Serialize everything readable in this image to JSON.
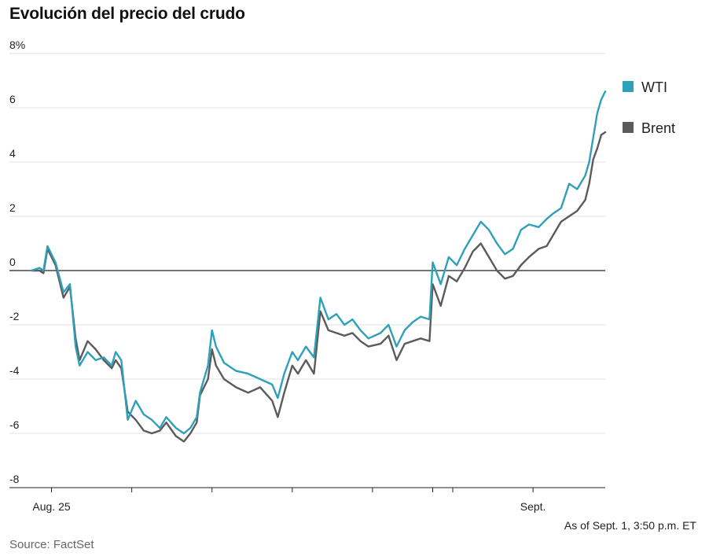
{
  "chart_data": {
    "type": "line",
    "title": "Evolución del precio del crudo",
    "ylabel": "",
    "xlabel": "",
    "ylim": [
      -8,
      8
    ],
    "y_ticks": [
      8,
      6,
      4,
      2,
      0,
      -2,
      -4,
      -6,
      -8
    ],
    "y_tick_labels": [
      "8%",
      "6",
      "4",
      "2",
      "0",
      "-2",
      "-4",
      "-6",
      "-8"
    ],
    "x_range": [
      0,
      7.15
    ],
    "x_ticks": [
      0.25,
      1.25,
      2.25,
      3.25,
      4.25,
      5.0,
      5.25,
      6.25
    ],
    "x_tick_labels": [
      {
        "x": 0.25,
        "label": "Aug. 25"
      },
      {
        "x": 6.25,
        "label": "Sept."
      }
    ],
    "legend_position": "right",
    "grid": true,
    "series": [
      {
        "name": "WTI",
        "color": "#2ea1b8",
        "points": [
          [
            0,
            0
          ],
          [
            0.1,
            0.1
          ],
          [
            0.15,
            0.0
          ],
          [
            0.2,
            0.9
          ],
          [
            0.3,
            0.3
          ],
          [
            0.4,
            -0.8
          ],
          [
            0.48,
            -0.5
          ],
          [
            0.55,
            -2.8
          ],
          [
            0.6,
            -3.5
          ],
          [
            0.7,
            -3.0
          ],
          [
            0.8,
            -3.3
          ],
          [
            0.9,
            -3.2
          ],
          [
            1.0,
            -3.5
          ],
          [
            1.05,
            -3.0
          ],
          [
            1.12,
            -3.3
          ],
          [
            1.2,
            -5.5
          ],
          [
            1.3,
            -4.8
          ],
          [
            1.4,
            -5.3
          ],
          [
            1.5,
            -5.5
          ],
          [
            1.6,
            -5.8
          ],
          [
            1.68,
            -5.4
          ],
          [
            1.8,
            -5.8
          ],
          [
            1.9,
            -6.0
          ],
          [
            1.98,
            -5.8
          ],
          [
            2.06,
            -5.4
          ],
          [
            2.1,
            -4.5
          ],
          [
            2.2,
            -3.5
          ],
          [
            2.25,
            -2.2
          ],
          [
            2.3,
            -2.8
          ],
          [
            2.4,
            -3.4
          ],
          [
            2.55,
            -3.7
          ],
          [
            2.7,
            -3.8
          ],
          [
            2.85,
            -4.0
          ],
          [
            3.0,
            -4.2
          ],
          [
            3.07,
            -4.7
          ],
          [
            3.15,
            -3.8
          ],
          [
            3.25,
            -3.0
          ],
          [
            3.32,
            -3.3
          ],
          [
            3.42,
            -2.8
          ],
          [
            3.52,
            -3.2
          ],
          [
            3.6,
            -1.0
          ],
          [
            3.7,
            -1.8
          ],
          [
            3.8,
            -1.6
          ],
          [
            3.9,
            -2.0
          ],
          [
            4.0,
            -1.8
          ],
          [
            4.1,
            -2.2
          ],
          [
            4.2,
            -2.5
          ],
          [
            4.35,
            -2.3
          ],
          [
            4.45,
            -2.0
          ],
          [
            4.55,
            -2.8
          ],
          [
            4.65,
            -2.2
          ],
          [
            4.75,
            -1.9
          ],
          [
            4.85,
            -1.7
          ],
          [
            4.96,
            -1.8
          ],
          [
            5.0,
            0.3
          ],
          [
            5.1,
            -0.5
          ],
          [
            5.2,
            0.5
          ],
          [
            5.3,
            0.2
          ],
          [
            5.4,
            0.8
          ],
          [
            5.5,
            1.3
          ],
          [
            5.6,
            1.8
          ],
          [
            5.7,
            1.5
          ],
          [
            5.8,
            1.0
          ],
          [
            5.9,
            0.6
          ],
          [
            6.0,
            0.8
          ],
          [
            6.1,
            1.5
          ],
          [
            6.2,
            1.7
          ],
          [
            6.32,
            1.6
          ],
          [
            6.42,
            1.9
          ],
          [
            6.5,
            2.1
          ],
          [
            6.6,
            2.3
          ],
          [
            6.7,
            3.2
          ],
          [
            6.8,
            3.0
          ],
          [
            6.9,
            3.5
          ],
          [
            6.95,
            4.0
          ],
          [
            7.0,
            4.9
          ],
          [
            7.05,
            5.8
          ],
          [
            7.1,
            6.3
          ],
          [
            7.15,
            6.6
          ]
        ]
      },
      {
        "name": "Brent",
        "color": "#5b5b5b",
        "points": [
          [
            0,
            0
          ],
          [
            0.1,
            0.0
          ],
          [
            0.15,
            -0.1
          ],
          [
            0.2,
            0.8
          ],
          [
            0.3,
            0.2
          ],
          [
            0.4,
            -1.0
          ],
          [
            0.48,
            -0.6
          ],
          [
            0.55,
            -2.5
          ],
          [
            0.6,
            -3.3
          ],
          [
            0.7,
            -2.6
          ],
          [
            0.8,
            -2.9
          ],
          [
            0.9,
            -3.3
          ],
          [
            1.0,
            -3.6
          ],
          [
            1.05,
            -3.3
          ],
          [
            1.12,
            -3.6
          ],
          [
            1.2,
            -5.2
          ],
          [
            1.3,
            -5.5
          ],
          [
            1.4,
            -5.9
          ],
          [
            1.5,
            -6.0
          ],
          [
            1.6,
            -5.9
          ],
          [
            1.68,
            -5.6
          ],
          [
            1.8,
            -6.1
          ],
          [
            1.9,
            -6.3
          ],
          [
            1.98,
            -6.0
          ],
          [
            2.06,
            -5.6
          ],
          [
            2.1,
            -4.6
          ],
          [
            2.2,
            -4.0
          ],
          [
            2.25,
            -2.9
          ],
          [
            2.3,
            -3.5
          ],
          [
            2.4,
            -4.0
          ],
          [
            2.55,
            -4.3
          ],
          [
            2.7,
            -4.5
          ],
          [
            2.85,
            -4.3
          ],
          [
            3.0,
            -4.8
          ],
          [
            3.07,
            -5.4
          ],
          [
            3.15,
            -4.5
          ],
          [
            3.25,
            -3.5
          ],
          [
            3.32,
            -3.8
          ],
          [
            3.42,
            -3.3
          ],
          [
            3.52,
            -3.8
          ],
          [
            3.6,
            -1.5
          ],
          [
            3.7,
            -2.2
          ],
          [
            3.8,
            -2.3
          ],
          [
            3.9,
            -2.4
          ],
          [
            4.0,
            -2.3
          ],
          [
            4.1,
            -2.6
          ],
          [
            4.2,
            -2.8
          ],
          [
            4.35,
            -2.7
          ],
          [
            4.45,
            -2.4
          ],
          [
            4.55,
            -3.3
          ],
          [
            4.65,
            -2.7
          ],
          [
            4.75,
            -2.6
          ],
          [
            4.85,
            -2.5
          ],
          [
            4.96,
            -2.6
          ],
          [
            5.0,
            -0.5
          ],
          [
            5.1,
            -1.3
          ],
          [
            5.2,
            -0.2
          ],
          [
            5.3,
            -0.4
          ],
          [
            5.4,
            0.1
          ],
          [
            5.5,
            0.7
          ],
          [
            5.6,
            1.0
          ],
          [
            5.7,
            0.5
          ],
          [
            5.8,
            0.0
          ],
          [
            5.9,
            -0.3
          ],
          [
            6.0,
            -0.2
          ],
          [
            6.1,
            0.2
          ],
          [
            6.2,
            0.5
          ],
          [
            6.32,
            0.8
          ],
          [
            6.42,
            0.9
          ],
          [
            6.5,
            1.3
          ],
          [
            6.6,
            1.8
          ],
          [
            6.7,
            2.0
          ],
          [
            6.8,
            2.2
          ],
          [
            6.9,
            2.6
          ],
          [
            6.95,
            3.2
          ],
          [
            7.0,
            4.1
          ],
          [
            7.05,
            4.5
          ],
          [
            7.1,
            5.0
          ],
          [
            7.15,
            5.1
          ]
        ]
      }
    ]
  },
  "footer": {
    "as_of": "As of Sept. 1, 3:50 p.m. ET",
    "source": "Source: FactSet"
  }
}
